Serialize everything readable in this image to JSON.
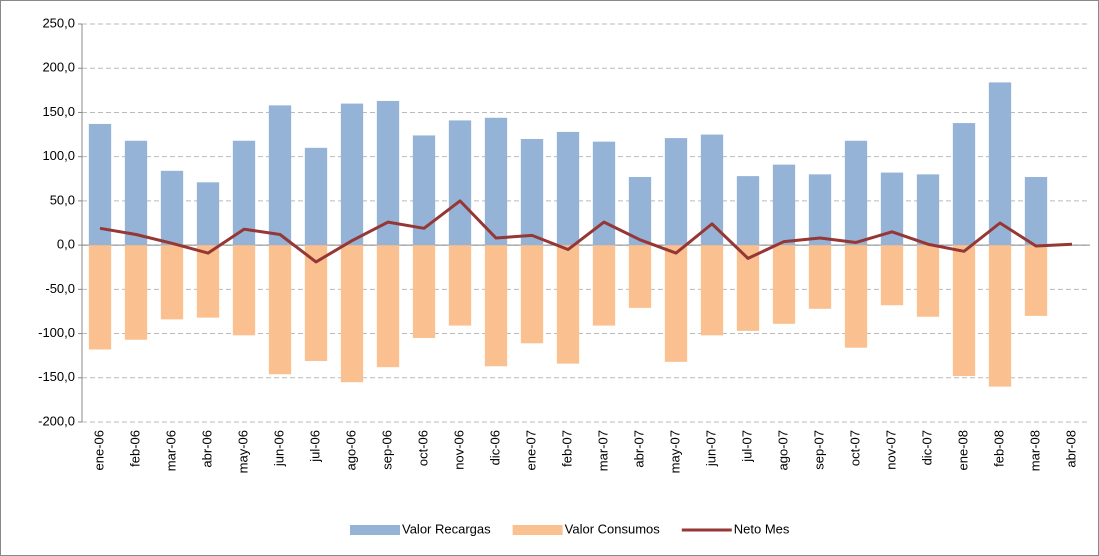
{
  "chart_data": {
    "type": "bar",
    "categories": [
      "ene-06",
      "feb-06",
      "mar-06",
      "abr-06",
      "may-06",
      "jun-06",
      "jul-06",
      "ago-06",
      "sep-06",
      "oct-06",
      "nov-06",
      "dic-06",
      "ene-07",
      "feb-07",
      "mar-07",
      "abr-07",
      "may-07",
      "jun-07",
      "jul-07",
      "ago-07",
      "sep-07",
      "oct-07",
      "nov-07",
      "dic-07",
      "ene-08",
      "feb-08",
      "mar-08",
      "abr-08"
    ],
    "series": [
      {
        "name": "Valor Recargas",
        "type": "bar",
        "color": "#95b3d7",
        "values": [
          137,
          118,
          84,
          71,
          118,
          158,
          110,
          160,
          163,
          124,
          141,
          144,
          120,
          128,
          117,
          77,
          121,
          125,
          78,
          91,
          80,
          118,
          82,
          80,
          138,
          184,
          77,
          null
        ]
      },
      {
        "name": "Valor Consumos",
        "type": "bar",
        "color": "#fac090",
        "values": [
          -118,
          -107,
          -84,
          -82,
          -102,
          -146,
          -131,
          -155,
          -138,
          -105,
          -91,
          -137,
          -111,
          -134,
          -91,
          -71,
          -132,
          -102,
          -97,
          -89,
          -72,
          -116,
          -68,
          -81,
          -148,
          -160,
          -80,
          null
        ]
      },
      {
        "name": "Neto Mes",
        "type": "line",
        "color": "#953735",
        "values": [
          19,
          12,
          2,
          -9,
          18,
          12,
          -19,
          5,
          26,
          19,
          50,
          8,
          11,
          -5,
          26,
          6,
          -9,
          24,
          -15,
          4,
          8,
          3,
          15,
          1,
          -7,
          25,
          -1,
          1
        ]
      }
    ],
    "ylim": [
      -200,
      250
    ],
    "yticks": [
      {
        "value": -200,
        "label": "-200,0"
      },
      {
        "value": -150,
        "label": "-150,0"
      },
      {
        "value": -100,
        "label": "-100,0"
      },
      {
        "value": -50,
        "label": "-50,0"
      },
      {
        "value": 0,
        "label": "0,0"
      },
      {
        "value": 50,
        "label": "50,0"
      },
      {
        "value": 100,
        "label": "100,0"
      },
      {
        "value": 150,
        "label": "150,0"
      },
      {
        "value": 200,
        "label": "200,0"
      },
      {
        "value": 250,
        "label": "250,0"
      }
    ],
    "grid": true,
    "legend": "bottom"
  }
}
